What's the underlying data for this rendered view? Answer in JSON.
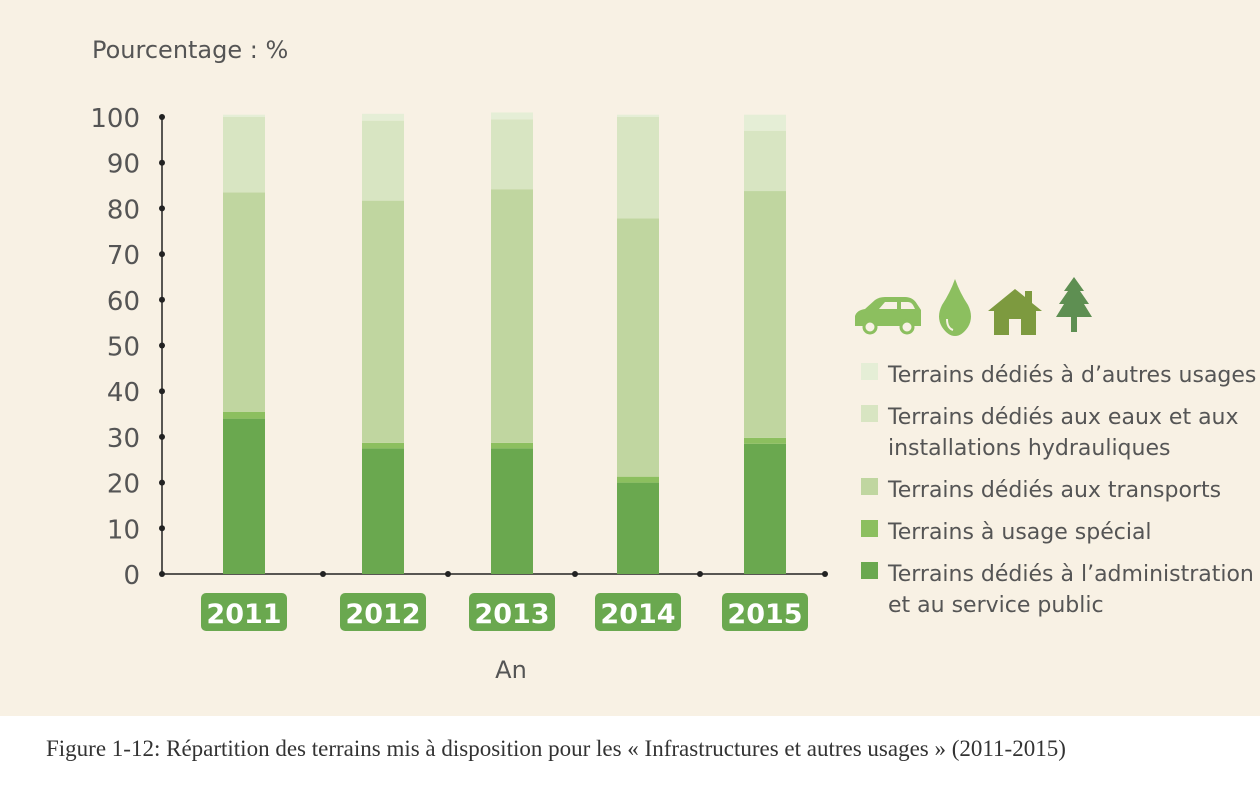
{
  "chart_data": {
    "type": "bar",
    "stacked": true,
    "ylabel": "Pourcentage : %",
    "xlabel": "An",
    "ylim": [
      0,
      100
    ],
    "yticks": [
      "0",
      "10",
      "20",
      "30",
      "40",
      "50",
      "60",
      "70",
      "80",
      "90",
      "100"
    ],
    "categories": [
      "2011",
      "2012",
      "2013",
      "2014",
      "2015"
    ],
    "series": [
      {
        "name": "Terrains dédiés à l’administration et au service public",
        "name_lines": [
          "Terrains dédiés à l’administration",
          "et au service public"
        ],
        "color": "#6aa84f",
        "values": [
          34,
          27.5,
          27.5,
          20,
          28.5
        ]
      },
      {
        "name": "Terrains à usage spécial",
        "name_lines": [
          "Terrains à usage spécial"
        ],
        "color": "#8cbf5f",
        "values": [
          1.5,
          1.2,
          1.2,
          1.3,
          1.3
        ]
      },
      {
        "name": "Terrains dédiés aux transports",
        "name_lines": [
          "Terrains dédiés aux transports"
        ],
        "color": "#c0d6a0",
        "values": [
          48,
          53,
          55.5,
          56.5,
          54
        ]
      },
      {
        "name": "Terrains dédiés aux eaux et aux installations hydrauliques",
        "name_lines": [
          "Terrains dédiés aux eaux et aux",
          "installations hydrauliques"
        ],
        "color": "#d8e5c2",
        "values": [
          16.5,
          17.5,
          15.3,
          22.2,
          13.2
        ]
      },
      {
        "name": "Terrains dédiés à d’autres usages",
        "name_lines": [
          "Terrains dédiés à d’autres usages"
        ],
        "color": "#e5eed6",
        "values": [
          0.5,
          1.5,
          1.5,
          0.5,
          3.5
        ]
      }
    ],
    "legend_order": [
      4,
      3,
      2,
      1,
      0
    ],
    "legend_icons": [
      {
        "icon": "car-icon",
        "color": "#8cbf5f"
      },
      {
        "icon": "water-drop-icon",
        "color": "#8cbf5f"
      },
      {
        "icon": "house-icon",
        "color": "#7d9a3f"
      },
      {
        "icon": "tree-icon",
        "color": "#5e8f52"
      }
    ],
    "year_badge_color": "#6aa84f",
    "grid": false,
    "legend_position": "right"
  },
  "caption": "Figure 1-12: Répartition des terrains mis à disposition pour les « Infrastructures et autres usages » (2011-2015)"
}
